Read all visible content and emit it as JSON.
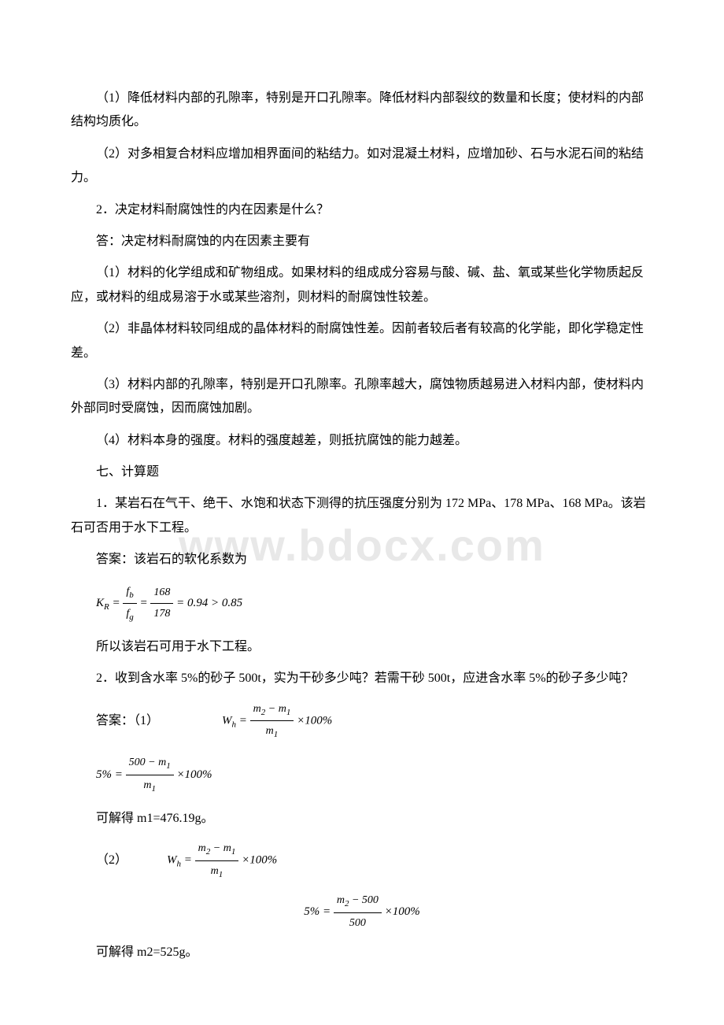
{
  "watermark": "www.bdocx.com",
  "paragraphs": {
    "p1": "（1）降低材料内部的孔隙率，特别是开口孔隙率。降低材料内部裂纹的数量和长度；使材料的内部结构均质化。",
    "p2": "（2）对多相复合材料应增加相界面间的粘结力。如对混凝土材料，应增加砂、石与水泥石间的粘结力。",
    "p3": "2．决定材料耐腐蚀性的内在因素是什么？",
    "p4": "答：决定材料耐腐蚀的内在因素主要有",
    "p5": "（1）材料的化学组成和矿物组成。如果材料的组成成分容易与酸、碱、盐、氧或某些化学物质起反应，或材料的组成易溶于水或某些溶剂，则材料的耐腐蚀性较差。",
    "p6": "（2）非晶体材料较同组成的晶体材料的耐腐蚀性差。因前者较后者有较高的化学能，即化学稳定性差。",
    "p7": "（3）材料内部的孔隙率，特别是开口孔隙率。孔隙率越大，腐蚀物质越易进入材料内部，使材料内外部同时受腐蚀，因而腐蚀加剧。",
    "p8": "（4）材料本身的强度。材料的强度越差，则抵抗腐蚀的能力越差。",
    "p9": "七、计算题",
    "p10": "1．某岩石在气干、绝干、水饱和状态下测得的抗压强度分别为 172 MPa、178 MPa、168 MPa。该岩石可否用于水下工程。",
    "p11": "答案：该岩石的软化系数为",
    "p12": "所以该岩石可用于水下工程。",
    "p13": "2．收到含水率 5%的砂子 500t，实为干砂多少吨？若需干砂 500t，应进含水率 5%的砂子多少吨？",
    "p14": "答案：（1）",
    "p15": "可解得 m1=476.19g。",
    "p16": "（2）",
    "p17": "可解得 m2=525g。"
  },
  "formulas": {
    "f1": {
      "lhs_var": "K",
      "lhs_sub": "R",
      "frac1_num_var": "f",
      "frac1_num_sub": "b",
      "frac1_den_var": "f",
      "frac1_den_sub": "g",
      "frac2_num": "168",
      "frac2_den": "178",
      "result": "= 0.94 > 0.85"
    },
    "f2": {
      "lhs_var": "W",
      "lhs_sub": "h",
      "num_expr": "m",
      "num_sub1": "2",
      "num_minus": " − ",
      "num_var2": "m",
      "num_sub2": "1",
      "den_var": "m",
      "den_sub": "1",
      "tail": "×100%"
    },
    "f3": {
      "lhs": "5% =",
      "num": "500 − m",
      "num_sub": "1",
      "den_var": "m",
      "den_sub": "1",
      "tail": "×100%"
    },
    "f4": {
      "lhs_var": "W",
      "lhs_sub": "h",
      "num_var1": "m",
      "num_sub1": "2",
      "num_minus": " − ",
      "num_var2": "m",
      "num_sub2": "1",
      "den_var": "m",
      "den_sub": "1",
      "tail": "×100%"
    },
    "f5": {
      "lhs": "5% =",
      "num_var": "m",
      "num_sub": "2",
      "num_minus": " − 500",
      "den": "500",
      "tail": "×100%"
    }
  },
  "colors": {
    "text": "#000000",
    "background": "#ffffff",
    "watermark": "#e8e8e8"
  }
}
